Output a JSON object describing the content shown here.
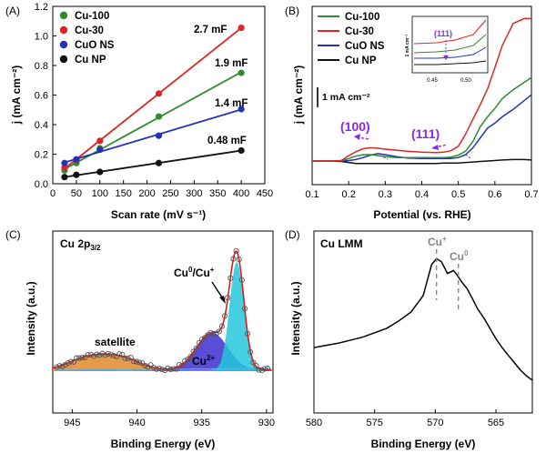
{
  "panel_labels": [
    "(A)",
    "(B)",
    "(C)",
    "(D)"
  ],
  "colors": {
    "Cu-100": "#2e8b2e",
    "Cu-30": "#e02424",
    "CuO NS": "#2233bb",
    "Cu NP": "#111111",
    "purple": "#8a2be2",
    "cu2_fill": "#3c2fd0",
    "cu0_fill": "#25c8dc",
    "sat_fill": "#e08a2a",
    "fit": "#d81b1b",
    "raw": "#555555",
    "gray": "#888888"
  },
  "chart_data": [
    {
      "id": "A",
      "type": "scatter",
      "xlabel": "Scan rate (mV s⁻¹)",
      "ylabel": "j (mA cm⁻²)",
      "xlim": [
        0,
        450
      ],
      "ylim": [
        0,
        1.2
      ],
      "xticks": [
        "0",
        "50",
        "100",
        "150",
        "200",
        "250",
        "300",
        "350",
        "400",
        "450"
      ],
      "yticks": [
        "0.0",
        "0.2",
        "0.4",
        "0.6",
        "0.8",
        "1.0",
        "1.2"
      ],
      "x": [
        25,
        50,
        100,
        225,
        400
      ],
      "series": [
        {
          "name": "Cu-100",
          "values": [
            0.09,
            0.14,
            0.24,
            0.455,
            0.75
          ],
          "annotation": "1.9 mF"
        },
        {
          "name": "Cu-30",
          "values": [
            0.11,
            0.16,
            0.29,
            0.61,
            1.055
          ],
          "annotation": "2.7 mF"
        },
        {
          "name": "CuO NS",
          "values": [
            0.14,
            0.165,
            0.23,
            0.325,
            0.505
          ],
          "annotation": "1.4 mF"
        },
        {
          "name": "Cu NP",
          "values": [
            0.045,
            0.06,
            0.08,
            0.14,
            0.225
          ],
          "annotation": "0.48 mF"
        }
      ],
      "legend": "top-left",
      "grid": false
    },
    {
      "id": "B",
      "type": "line",
      "xlabel": "Potential (vs. RHE)",
      "ylabel": "j (mA cm⁻²)",
      "xlim": [
        0.1,
        0.7
      ],
      "xticks": [
        "0.1",
        "0.2",
        "0.3",
        "0.4",
        "0.5",
        "0.6",
        "0.7"
      ],
      "scale_bar": "1 mA cm⁻²",
      "peak_labels": [
        "(100)",
        "(111)"
      ],
      "inset": {
        "peak_label": "(111)",
        "xticks": [
          "0.45",
          "0.50"
        ],
        "ylabel": "1 mA cm⁻²"
      },
      "x": [
        0.1,
        0.15,
        0.18,
        0.2,
        0.22,
        0.24,
        0.26,
        0.28,
        0.3,
        0.33,
        0.36,
        0.4,
        0.44,
        0.46,
        0.48,
        0.5,
        0.52,
        0.54,
        0.56,
        0.58,
        0.6,
        0.62,
        0.65,
        0.68,
        0.7
      ],
      "series": [
        {
          "name": "Cu-100",
          "values": [
            0.15,
            0.15,
            0.155,
            0.2,
            0.25,
            0.28,
            0.28,
            0.26,
            0.24,
            0.22,
            0.22,
            0.22,
            0.22,
            0.22,
            0.23,
            0.27,
            0.35,
            0.55,
            0.85,
            1.05,
            1.22,
            1.42,
            1.6,
            1.75,
            1.85
          ]
        },
        {
          "name": "Cu-30",
          "values": [
            0.15,
            0.15,
            0.16,
            0.26,
            0.34,
            0.4,
            0.42,
            0.41,
            0.39,
            0.37,
            0.35,
            0.33,
            0.32,
            0.33,
            0.36,
            0.45,
            0.7,
            1.0,
            1.3,
            1.62,
            2.05,
            2.5,
            2.95,
            3.05,
            3.05
          ]
        },
        {
          "name": "CuO NS",
          "values": [
            0.15,
            0.15,
            0.15,
            0.16,
            0.18,
            0.22,
            0.27,
            0.3,
            0.28,
            0.24,
            0.21,
            0.2,
            0.2,
            0.2,
            0.2,
            0.22,
            0.28,
            0.42,
            0.62,
            0.82,
            0.92,
            1.05,
            1.2,
            1.38,
            1.5
          ]
        },
        {
          "name": "Cu NP",
          "values": [
            0.15,
            0.15,
            0.14,
            0.12,
            0.1,
            0.1,
            0.1,
            0.1,
            0.1,
            0.1,
            0.1,
            0.1,
            0.1,
            0.11,
            0.11,
            0.11,
            0.12,
            0.13,
            0.14,
            0.15,
            0.16,
            0.17,
            0.18,
            0.18,
            0.17
          ]
        }
      ],
      "legend": "top-left"
    },
    {
      "id": "C",
      "type": "line",
      "title": "Cu 2p3/2",
      "xlabel": "Binding Energy (eV)",
      "ylabel": "Intensity (a.u.)",
      "xlim": [
        946.5,
        929.5
      ],
      "xticks": [
        "945",
        "940",
        "935",
        "930"
      ],
      "annotations": [
        "satellite",
        "Cu²⁺",
        "Cu⁰/Cu⁺"
      ]
    },
    {
      "id": "D",
      "type": "line",
      "title": "Cu LMM",
      "xlabel": "Binding Energy (eV)",
      "ylabel": "Intensity (a.u.)",
      "xlim": [
        580,
        562
      ],
      "xticks": [
        "580",
        "575",
        "570",
        "565"
      ],
      "markers": [
        "Cu⁺",
        "Cu⁰"
      ],
      "x": [
        580,
        578,
        576,
        575,
        574,
        573,
        572,
        571,
        570.3,
        569.9,
        569.5,
        569,
        568.5,
        568.2,
        567.8,
        567.4,
        567,
        566.5,
        566,
        565.5,
        565,
        564.5,
        564,
        563.5,
        563,
        562.5,
        562
      ],
      "values": [
        0.22,
        0.25,
        0.29,
        0.32,
        0.35,
        0.4,
        0.46,
        0.57,
        0.78,
        0.82,
        0.8,
        0.72,
        0.74,
        0.71,
        0.66,
        0.62,
        0.56,
        0.48,
        0.42,
        0.35,
        0.28,
        0.22,
        0.17,
        0.12,
        0.07,
        0.03,
        0.0
      ]
    }
  ]
}
